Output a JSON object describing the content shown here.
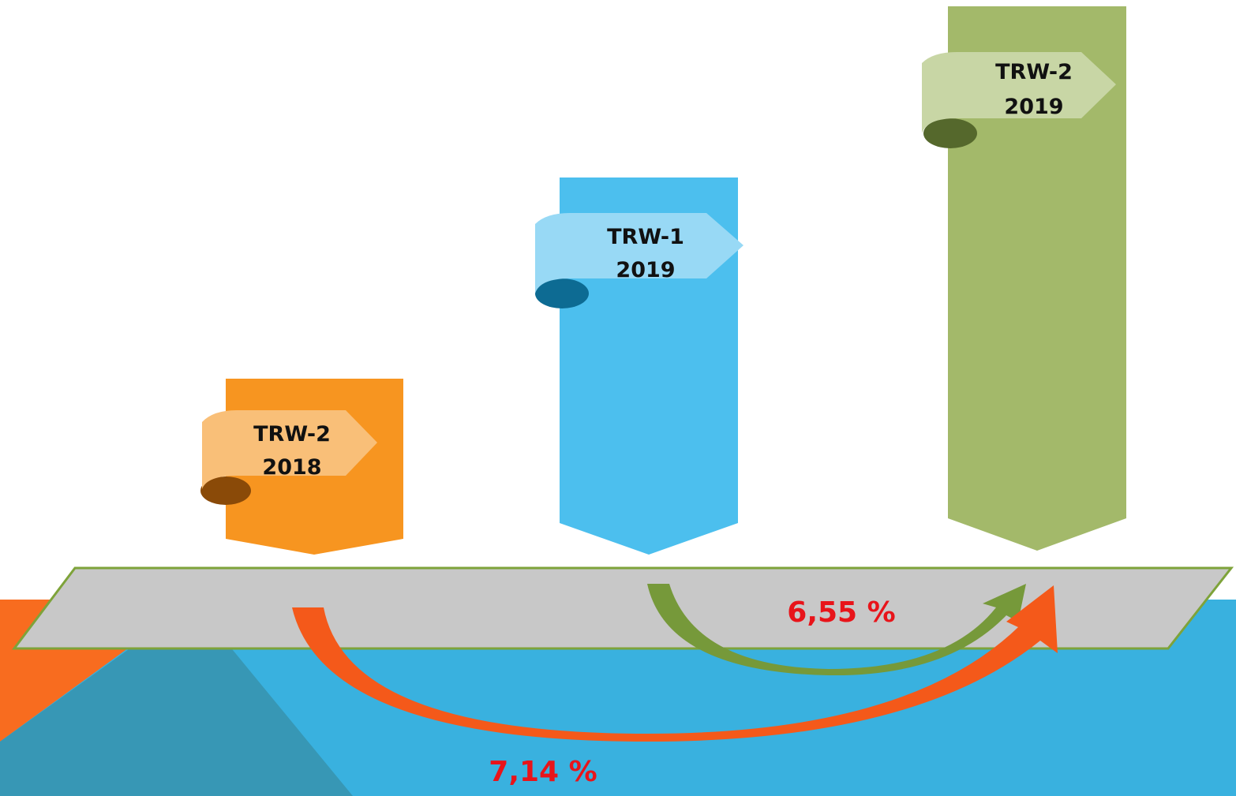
{
  "bars": [
    {
      "name": "TRW-2",
      "year": "2018"
    },
    {
      "name": "TRW-1",
      "year": "2019"
    },
    {
      "name": "TRW-2",
      "year": "2019"
    }
  ],
  "arrows": [
    {
      "label": "6,55 %"
    },
    {
      "label": "7,14 %"
    }
  ]
}
